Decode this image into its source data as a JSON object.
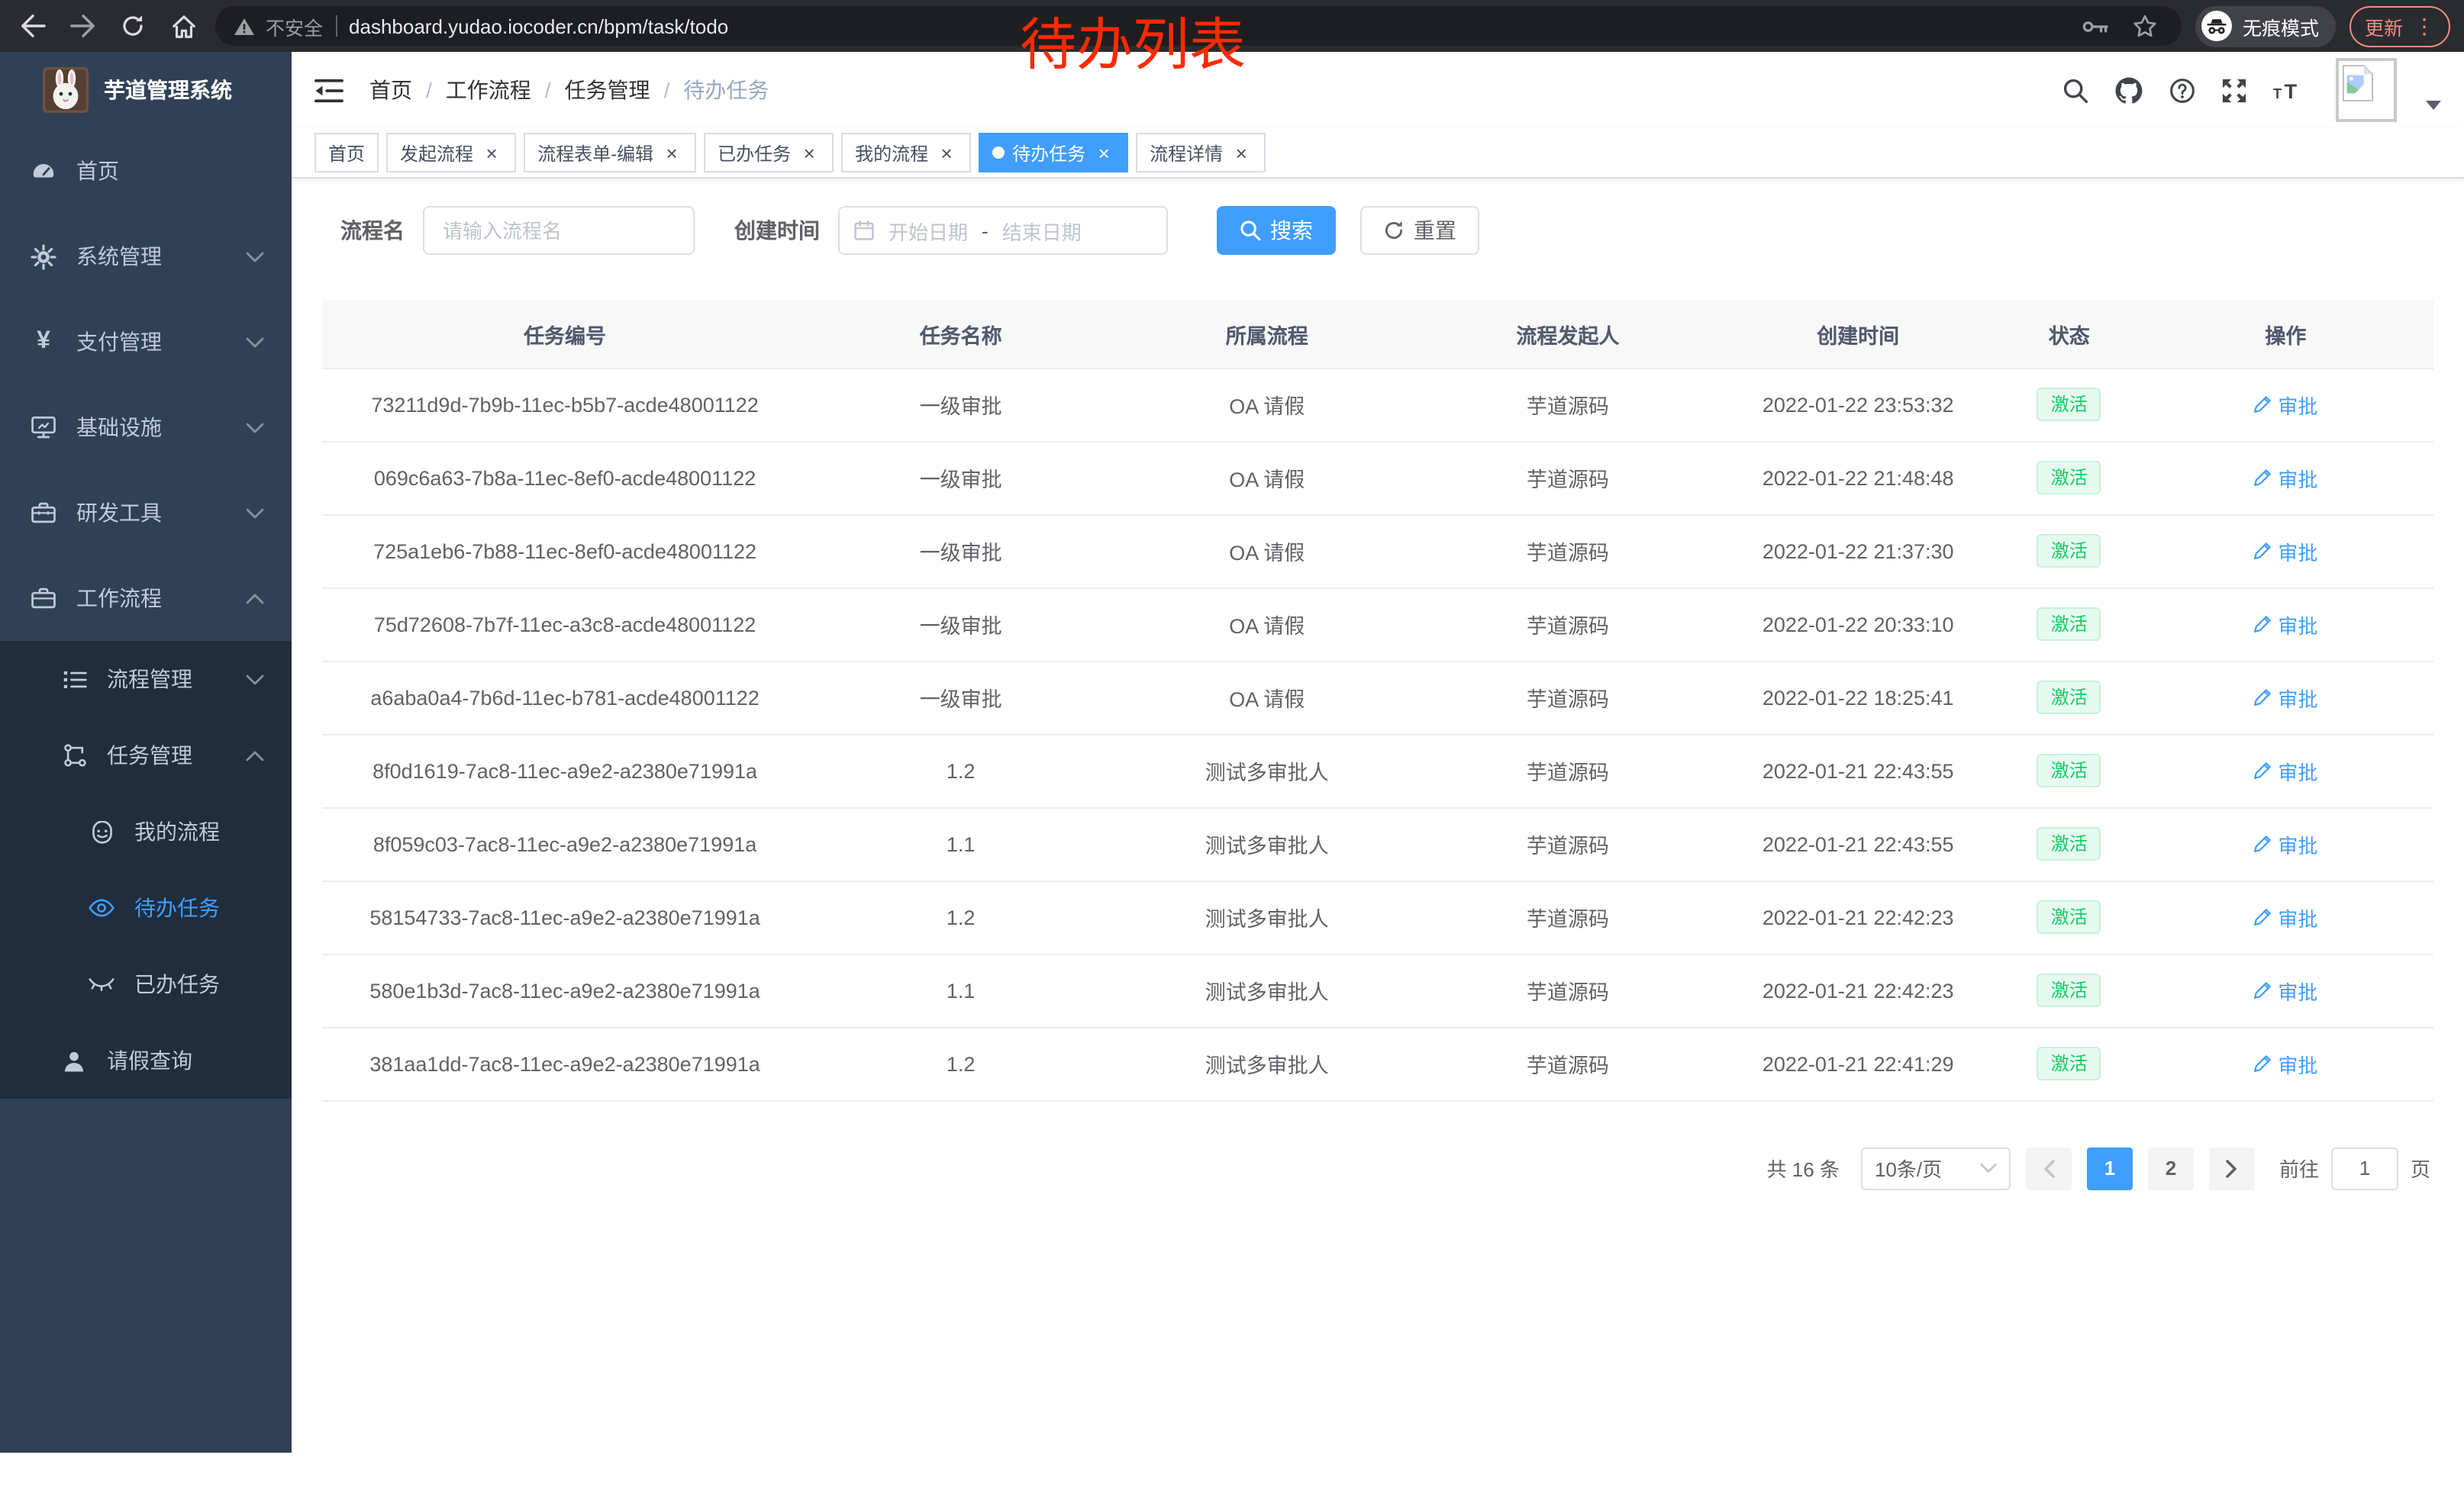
{
  "browser": {
    "security_label": "不安全",
    "url": "dashboard.yudao.iocoder.cn/bpm/task/todo",
    "incognito_label": "无痕模式",
    "update_label": "更新"
  },
  "annotation": {
    "text": "待办列表"
  },
  "sidebar": {
    "logo_title": "芋道管理系统",
    "items": [
      {
        "name": "home",
        "label": "首页",
        "icon": "dashboard-icon",
        "level": 1,
        "submenu": false
      },
      {
        "name": "system-mgmt",
        "label": "系统管理",
        "icon": "gear-icon",
        "level": 1,
        "chevron": "down",
        "submenu": false
      },
      {
        "name": "payment-mgmt",
        "label": "支付管理",
        "icon": "yen-icon",
        "level": 1,
        "chevron": "down",
        "submenu": false
      },
      {
        "name": "infrastructure",
        "label": "基础设施",
        "icon": "monitor-icon",
        "level": 1,
        "chevron": "down",
        "submenu": false
      },
      {
        "name": "dev-tools",
        "label": "研发工具",
        "icon": "toolbox-icon",
        "level": 1,
        "chevron": "down",
        "submenu": false
      },
      {
        "name": "workflow",
        "label": "工作流程",
        "icon": "briefcase-icon",
        "level": 1,
        "chevron": "up",
        "submenu": false
      },
      {
        "name": "process-mgmt",
        "label": "流程管理",
        "icon": "list-icon",
        "level": 2,
        "chevron": "down",
        "submenu": true
      },
      {
        "name": "task-mgmt",
        "label": "任务管理",
        "icon": "tree-icon",
        "level": 2,
        "chevron": "up",
        "submenu": true
      },
      {
        "name": "my-process",
        "label": "我的流程",
        "icon": "robot-icon",
        "level": 3,
        "submenu": true
      },
      {
        "name": "todo-task",
        "label": "待办任务",
        "icon": "eye-open-icon",
        "level": 3,
        "submenu": true,
        "active": true
      },
      {
        "name": "done-task",
        "label": "已办任务",
        "icon": "eye-closed-icon",
        "level": 3,
        "submenu": true
      },
      {
        "name": "leave-query",
        "label": "请假查询",
        "icon": "user-icon",
        "level": 2,
        "submenu": true
      }
    ]
  },
  "navbar": {
    "breadcrumb": [
      "首页",
      "工作流程",
      "任务管理",
      "待办任务"
    ]
  },
  "tabs": [
    {
      "label": "首页",
      "closable": false,
      "active": false
    },
    {
      "label": "发起流程",
      "closable": true,
      "active": false
    },
    {
      "label": "流程表单-编辑",
      "closable": true,
      "active": false
    },
    {
      "label": "已办任务",
      "closable": true,
      "active": false
    },
    {
      "label": "我的流程",
      "closable": true,
      "active": false
    },
    {
      "label": "待办任务",
      "closable": true,
      "active": true
    },
    {
      "label": "流程详情",
      "closable": true,
      "active": false
    }
  ],
  "filters": {
    "name_label": "流程名",
    "name_placeholder": "请输入流程名",
    "time_label": "创建时间",
    "start_placeholder": "开始日期",
    "range_separator": "-",
    "end_placeholder": "结束日期",
    "search_label": "搜索",
    "reset_label": "重置"
  },
  "table": {
    "columns": [
      "任务编号",
      "任务名称",
      "所属流程",
      "流程发起人",
      "创建时间",
      "状态",
      "操作"
    ],
    "status_label": "激活",
    "action_label": "审批",
    "rows": [
      {
        "id": "73211d9d-7b9b-11ec-b5b7-acde48001122",
        "name": "一级审批",
        "process": "OA 请假",
        "starter": "芋道源码",
        "time": "2022-01-22 23:53:32"
      },
      {
        "id": "069c6a63-7b8a-11ec-8ef0-acde48001122",
        "name": "一级审批",
        "process": "OA 请假",
        "starter": "芋道源码",
        "time": "2022-01-22 21:48:48"
      },
      {
        "id": "725a1eb6-7b88-11ec-8ef0-acde48001122",
        "name": "一级审批",
        "process": "OA 请假",
        "starter": "芋道源码",
        "time": "2022-01-22 21:37:30"
      },
      {
        "id": "75d72608-7b7f-11ec-a3c8-acde48001122",
        "name": "一级审批",
        "process": "OA 请假",
        "starter": "芋道源码",
        "time": "2022-01-22 20:33:10"
      },
      {
        "id": "a6aba0a4-7b6d-11ec-b781-acde48001122",
        "name": "一级审批",
        "process": "OA 请假",
        "starter": "芋道源码",
        "time": "2022-01-22 18:25:41"
      },
      {
        "id": "8f0d1619-7ac8-11ec-a9e2-a2380e71991a",
        "name": "1.2",
        "process": "测试多审批人",
        "starter": "芋道源码",
        "time": "2022-01-21 22:43:55"
      },
      {
        "id": "8f059c03-7ac8-11ec-a9e2-a2380e71991a",
        "name": "1.1",
        "process": "测试多审批人",
        "starter": "芋道源码",
        "time": "2022-01-21 22:43:55"
      },
      {
        "id": "58154733-7ac8-11ec-a9e2-a2380e71991a",
        "name": "1.2",
        "process": "测试多审批人",
        "starter": "芋道源码",
        "time": "2022-01-21 22:42:23"
      },
      {
        "id": "580e1b3d-7ac8-11ec-a9e2-a2380e71991a",
        "name": "1.1",
        "process": "测试多审批人",
        "starter": "芋道源码",
        "time": "2022-01-21 22:42:23"
      },
      {
        "id": "381aa1dd-7ac8-11ec-a9e2-a2380e71991a",
        "name": "1.2",
        "process": "测试多审批人",
        "starter": "芋道源码",
        "time": "2022-01-21 22:41:29"
      }
    ]
  },
  "pagination": {
    "total_label": "共 16 条",
    "page_size": "10条/页",
    "pages": [
      "1",
      "2"
    ],
    "current_page": "1",
    "goto_label": "前往",
    "goto_value": "1",
    "page_unit": "页"
  },
  "colors": {
    "accent": "#409eff",
    "success_text": "#13ce66",
    "sidebar_bg": "#304156",
    "submenu_bg": "#1f2d3d",
    "annotation": "#fb2a00",
    "update_button": "#f28b82"
  }
}
